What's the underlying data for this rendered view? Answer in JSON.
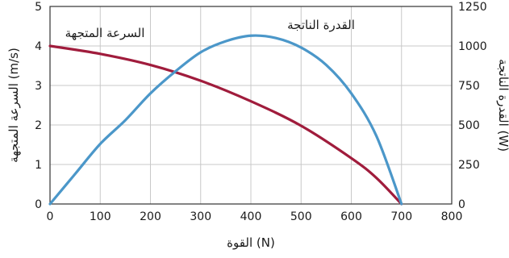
{
  "chart_data": {
    "type": "line",
    "xlabel": "القوة (N)",
    "ylabel_left": "السرعة المتجهة (m/s)",
    "ylabel_right": "القدرة الناتجة (W)",
    "xlim": [
      0,
      800
    ],
    "ylim_left": [
      0,
      5
    ],
    "ylim_right": [
      0,
      1250
    ],
    "x_ticks": [
      0,
      100,
      200,
      300,
      400,
      500,
      600,
      700,
      800
    ],
    "y_left_ticks": [
      0,
      1,
      2,
      3,
      4,
      5
    ],
    "y_right_ticks": [
      0,
      250,
      500,
      750,
      1000,
      1250
    ],
    "grid": true,
    "series": [
      {
        "name": "السرعة المتجهة",
        "axis": "left",
        "color": "#a01c3c",
        "x": [
          0,
          100,
          200,
          300,
          400,
          500,
          600,
          650,
          700
        ],
        "y": [
          4.0,
          3.8,
          3.52,
          3.12,
          2.6,
          1.98,
          1.16,
          0.66,
          0.0
        ]
      },
      {
        "name": "القدرة الناتجة",
        "axis": "right",
        "color": "#4b97c9",
        "x": [
          0,
          50,
          100,
          150,
          200,
          250,
          300,
          350,
          400,
          450,
          500,
          550,
          600,
          650,
          700
        ],
        "y": [
          0,
          190,
          380,
          530,
          700,
          840,
          960,
          1030,
          1065,
          1050,
          990,
          880,
          700,
          430,
          0
        ]
      }
    ]
  }
}
